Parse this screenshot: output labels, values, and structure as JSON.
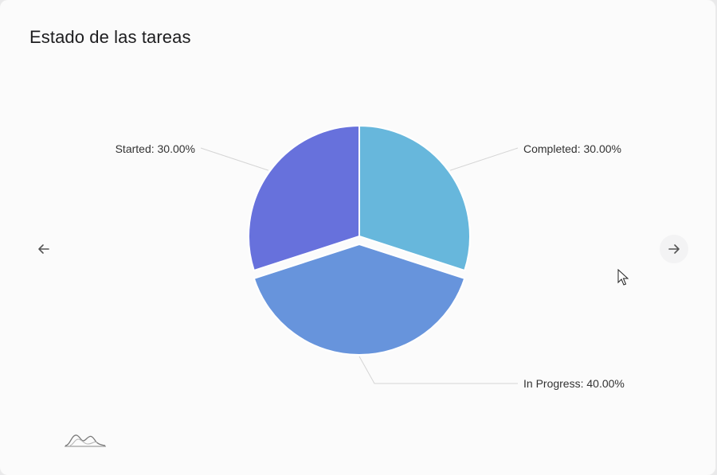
{
  "card": {
    "title": "Estado de las tareas"
  },
  "navigation": {
    "prev_icon": "arrow-left-icon",
    "next_icon": "arrow-right-icon"
  },
  "chart_data": {
    "type": "pie",
    "title": "Estado de las tareas",
    "slices": [
      {
        "label": "Completed",
        "value": 30.0,
        "display": "Completed: 30.00%",
        "color": "#67b7dc",
        "exploded": false
      },
      {
        "label": "In Progress",
        "value": 40.0,
        "display": "In Progress: 40.00%",
        "color": "#6794dc",
        "exploded": true
      },
      {
        "label": "Started",
        "value": 30.0,
        "display": "Started: 30.00%",
        "color": "#6771dc",
        "exploded": false
      }
    ],
    "legend": "none",
    "data_labels": "outside-with-leader-lines"
  },
  "colors": {
    "label_text": "#333333",
    "leader_line": "#d5d5d5",
    "slice_border": "#ffffff"
  }
}
